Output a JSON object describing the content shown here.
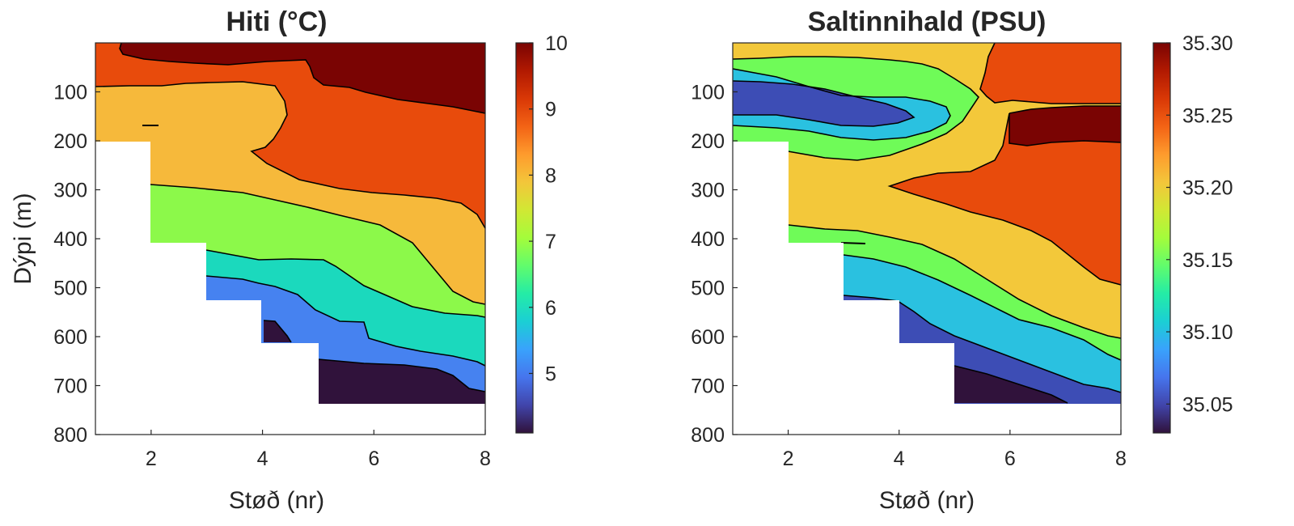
{
  "chart_data": [
    {
      "type": "contour",
      "title": "Hiti (°C)",
      "xlabel": "Støð (nr)",
      "ylabel": "Dýpi (m)",
      "xlim": [
        1,
        8
      ],
      "ylim": [
        800,
        0
      ],
      "x_ticks": [
        "2",
        "4",
        "6",
        "8"
      ],
      "y_ticks": [
        "100",
        "200",
        "300",
        "400",
        "500",
        "600",
        "700",
        "800"
      ],
      "colorbar": {
        "range": [
          4.1,
          10
        ],
        "tick_values": [
          5,
          6,
          7,
          8,
          9,
          10
        ],
        "tick_labels": [
          "5",
          "6",
          "7",
          "8",
          "9",
          "10"
        ],
        "colormap": [
          "#30123b",
          "#4145ab",
          "#4675ed",
          "#39a2fc",
          "#1bcfd4",
          "#24eca6",
          "#61fc6c",
          "#a4fc3b",
          "#d1e834",
          "#f3c63a",
          "#fe9b2d",
          "#f36315",
          "#d93806",
          "#b11901",
          "#7a0403"
        ]
      },
      "bottom_depth_by_station": [
        [
          1,
          200
        ],
        [
          2,
          410
        ],
        [
          3,
          530
        ],
        [
          4,
          615
        ],
        [
          5,
          740
        ],
        [
          8,
          740
        ]
      ],
      "levels": [
        {
          "value_range": [
            9.5,
            10
          ],
          "color": "#7a0403"
        },
        {
          "value_range": [
            8.5,
            9.5
          ],
          "color": "#e84b0c"
        },
        {
          "value_range": [
            7.5,
            8.5
          ],
          "color": "#f6b93b"
        },
        {
          "value_range": [
            6.5,
            7.5
          ],
          "color": "#8cf94a"
        },
        {
          "value_range": [
            5.5,
            6.5
          ],
          "color": "#1bd9bd"
        },
        {
          "value_range": [
            4.5,
            5.5
          ],
          "color": "#4682f0"
        },
        {
          "value_range": [
            4.1,
            4.5
          ],
          "color": "#30123b"
        }
      ]
    },
    {
      "type": "contour",
      "title": "Saltinnihald (PSU)",
      "xlabel": "Støð (nr)",
      "ylabel": "",
      "xlim": [
        1,
        8
      ],
      "ylim": [
        800,
        0
      ],
      "x_ticks": [
        "2",
        "4",
        "6",
        "8"
      ],
      "y_ticks": [
        "100",
        "200",
        "300",
        "400",
        "500",
        "600",
        "700",
        "800"
      ],
      "colorbar": {
        "range": [
          35.03,
          35.3
        ],
        "tick_values": [
          35.05,
          35.1,
          35.15,
          35.2,
          35.25,
          35.3
        ],
        "tick_labels": [
          "35.05",
          "35.10",
          "35.15",
          "35.20",
          "35.25",
          "35.30"
        ],
        "colormap": [
          "#30123b",
          "#4145ab",
          "#4675ed",
          "#39a2fc",
          "#1bcfd4",
          "#24eca6",
          "#61fc6c",
          "#a4fc3b",
          "#d1e834",
          "#f3c63a",
          "#fe9b2d",
          "#f36315",
          "#d93806",
          "#b11901",
          "#7a0403"
        ]
      },
      "bottom_depth_by_station": [
        [
          1,
          200
        ],
        [
          2,
          410
        ],
        [
          3,
          530
        ],
        [
          4,
          615
        ],
        [
          5,
          740
        ],
        [
          8,
          740
        ]
      ],
      "levels": [
        {
          "value_range": [
            35.275,
            35.3
          ],
          "color": "#7a0403"
        },
        {
          "value_range": [
            35.225,
            35.275
          ],
          "color": "#e84b0c"
        },
        {
          "value_range": [
            35.175,
            35.225
          ],
          "color": "#f3c83a"
        },
        {
          "value_range": [
            35.125,
            35.175
          ],
          "color": "#6ffb58"
        },
        {
          "value_range": [
            35.075,
            35.125
          ],
          "color": "#2ac1e0"
        },
        {
          "value_range": [
            35.03,
            35.075
          ],
          "color": "#3d4db5"
        },
        {
          "value_range": [
            35.0,
            35.03
          ],
          "color": "#30123b"
        }
      ]
    }
  ]
}
